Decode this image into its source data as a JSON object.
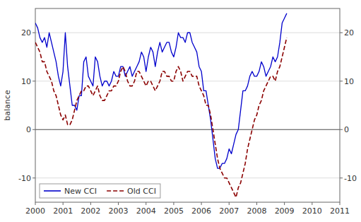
{
  "chart_data": {
    "type": "line",
    "title": "",
    "ylabel": "balance",
    "x": [
      2000,
      2000.0833333333333,
      2000.1666666666667,
      2000.25,
      2000.3333333333333,
      2000.4166666666667,
      2000.5,
      2000.5833333333333,
      2000.6666666666667,
      2000.75,
      2000.8333333333333,
      2000.9166666666667,
      2001,
      2001.0833333333333,
      2001.1666666666667,
      2001.25,
      2001.3333333333333,
      2001.4166666666667,
      2001.5,
      2001.5833333333333,
      2001.6666666666667,
      2001.75,
      2001.8333333333333,
      2001.9166666666667,
      2002,
      2002.0833333333333,
      2002.1666666666667,
      2002.25,
      2002.3333333333333,
      2002.4166666666667,
      2002.5,
      2002.5833333333333,
      2002.6666666666667,
      2002.75,
      2002.8333333333333,
      2002.9166666666667,
      2003,
      2003.0833333333333,
      2003.1666666666667,
      2003.25,
      2003.3333333333333,
      2003.4166666666667,
      2003.5,
      2003.5833333333333,
      2003.6666666666667,
      2003.75,
      2003.8333333333333,
      2003.9166666666667,
      2004,
      2004.0833333333333,
      2004.1666666666667,
      2004.25,
      2004.3333333333333,
      2004.4166666666667,
      2004.5,
      2004.5833333333333,
      2004.6666666666667,
      2004.75,
      2004.8333333333333,
      2004.9166666666667,
      2005,
      2005.0833333333333,
      2005.1666666666667,
      2005.25,
      2005.3333333333333,
      2005.4166666666667,
      2005.5,
      2005.5833333333333,
      2005.6666666666667,
      2005.75,
      2005.8333333333333,
      2005.9166666666667,
      2006,
      2006.0833333333333,
      2006.1666666666667,
      2006.25,
      2006.3333333333333,
      2006.4166666666667,
      2006.5,
      2006.5833333333333,
      2006.6666666666667,
      2006.75,
      2006.8333333333333,
      2006.9166666666667,
      2007,
      2007.0833333333333,
      2007.1666666666667,
      2007.25,
      2007.3333333333333,
      2007.4166666666667,
      2007.5,
      2007.5833333333333,
      2007.6666666666667,
      2007.75,
      2007.8333333333333,
      2007.9166666666667,
      2008,
      2008.0833333333333,
      2008.1666666666667,
      2008.25,
      2008.3333333333333,
      2008.4166666666667,
      2008.5,
      2008.5833333333333,
      2008.6666666666667,
      2008.75,
      2008.8333333333333,
      2008.9166666666667,
      2009,
      2009.0833333333333
    ],
    "series": [
      {
        "name": "New CCI",
        "color": "#0000cc",
        "line_style": "solid",
        "values": [
          22,
          21,
          19,
          18,
          19,
          17,
          20,
          18,
          16,
          14,
          11,
          9,
          12,
          20,
          13,
          9,
          5,
          5,
          4,
          7,
          7,
          14,
          15,
          11,
          10,
          9,
          15,
          14,
          11,
          9,
          10,
          10,
          9,
          10,
          12,
          11,
          11,
          13,
          13,
          11,
          12,
          13,
          11,
          12,
          13,
          14,
          16,
          15,
          12,
          15,
          17,
          16,
          13,
          16,
          18,
          16,
          17,
          18,
          18,
          16,
          15,
          17,
          20,
          19,
          19,
          18,
          20,
          20,
          18,
          17,
          16,
          13,
          12,
          8,
          8,
          5,
          2,
          -2,
          -6,
          -8,
          -8,
          -7,
          -7,
          -6,
          -4,
          -5,
          -3,
          -1,
          0,
          4,
          8,
          8,
          9,
          11,
          12,
          11,
          11,
          12,
          14,
          13,
          11,
          12,
          13,
          15,
          14,
          15,
          18,
          22,
          23,
          24
        ]
      },
      {
        "name": "Old CCI",
        "color": "#8b0000",
        "line_style": "dashed",
        "values": [
          18,
          17,
          16,
          14,
          14,
          12,
          11,
          10,
          8,
          7,
          5,
          3,
          2,
          3,
          1,
          1,
          2,
          4,
          6,
          7,
          8,
          8,
          9,
          9,
          8,
          7,
          8,
          9,
          7,
          6,
          6,
          7,
          8,
          8,
          9,
          9,
          10,
          12,
          13,
          12,
          10,
          9,
          9,
          10,
          12,
          12,
          11,
          10,
          9,
          10,
          10,
          9,
          8,
          9,
          10,
          12,
          12,
          11,
          11,
          10,
          10,
          12,
          13,
          12,
          10,
          11,
          12,
          12,
          11,
          11,
          11,
          9,
          8,
          7,
          5,
          5,
          3,
          0,
          -3,
          -6,
          -8,
          -9,
          -10,
          -10,
          -11,
          -12,
          -13,
          -14,
          -12,
          -11,
          -9,
          -7,
          -4,
          -2,
          0,
          2,
          3,
          5,
          6,
          8,
          9,
          10,
          11,
          11,
          10,
          12,
          13,
          15,
          17,
          19
        ]
      }
    ],
    "xlim": [
      2000.0,
      2011.0
    ],
    "xticks": [
      2000,
      2001,
      2002,
      2003,
      2004,
      2005,
      2006,
      2007,
      2008,
      2009,
      2010,
      2011
    ],
    "ylim": [
      -15,
      25
    ],
    "yticks": [
      -10,
      0,
      10,
      20
    ],
    "grid": true,
    "legend": "lower left"
  }
}
